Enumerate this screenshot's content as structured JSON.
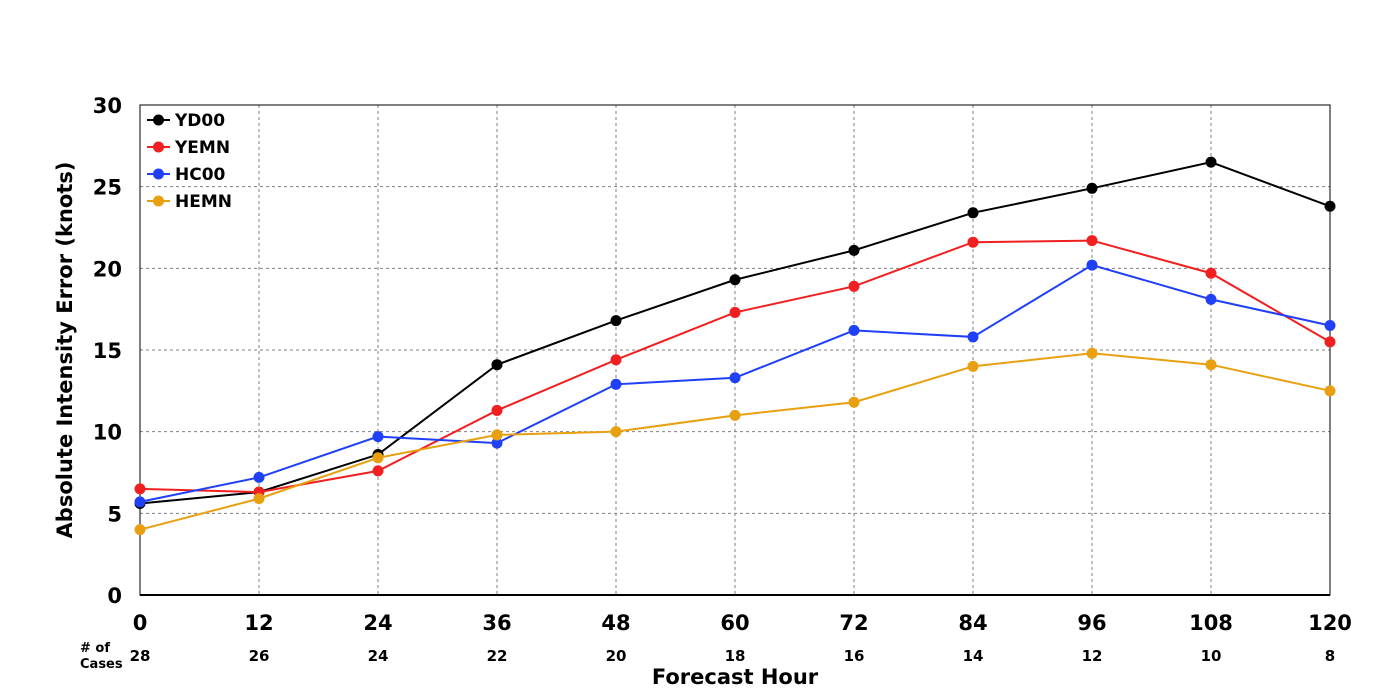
{
  "chart_data": {
    "type": "line",
    "xlabel": "Forecast Hour",
    "ylabel": "Absolute Intensity Error (knots)",
    "x": [
      0,
      12,
      24,
      36,
      48,
      60,
      72,
      84,
      96,
      108,
      120
    ],
    "xlim": [
      0,
      120
    ],
    "ylim": [
      0,
      30
    ],
    "yticks": [
      0,
      5,
      10,
      15,
      20,
      25,
      30
    ],
    "grid": true,
    "legend_position": "top-left",
    "cases_label": "# of Cases",
    "cases_label_line1": "# of",
    "cases_label_line2": "Cases",
    "cases": [
      28,
      26,
      24,
      22,
      20,
      18,
      16,
      14,
      12,
      10,
      8
    ],
    "series": [
      {
        "name": "YD00",
        "color": "#000000",
        "values": [
          5.6,
          6.3,
          8.6,
          14.1,
          16.8,
          19.3,
          21.1,
          23.4,
          24.9,
          26.5,
          23.8
        ]
      },
      {
        "name": "YEMN",
        "color": "#f02020",
        "values": [
          6.5,
          6.3,
          7.6,
          11.3,
          14.4,
          17.3,
          18.9,
          21.6,
          21.7,
          19.7,
          15.5
        ]
      },
      {
        "name": "HC00",
        "color": "#2040f8",
        "values": [
          5.7,
          7.2,
          9.7,
          9.3,
          12.9,
          13.3,
          16.2,
          15.8,
          20.2,
          18.1,
          16.5
        ]
      },
      {
        "name": "HEMN",
        "color": "#e8a010",
        "values": [
          4.0,
          5.9,
          8.4,
          9.8,
          10.0,
          11.0,
          11.8,
          14.0,
          14.8,
          14.1,
          12.5
        ]
      }
    ]
  }
}
